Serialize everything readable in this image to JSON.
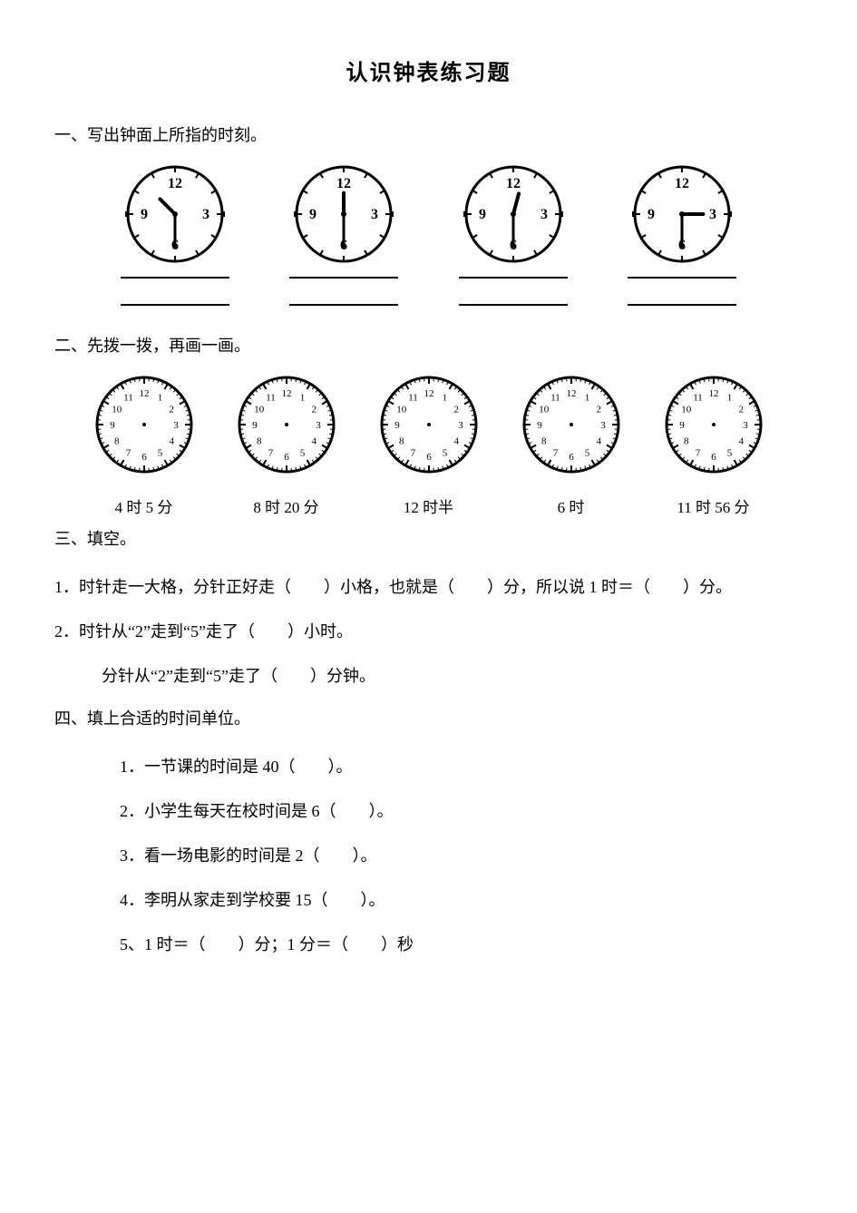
{
  "title": "认识钟表练习题",
  "section1": {
    "heading": "一、写出钟面上所指的时刻。",
    "clocks": [
      {
        "type": "simple",
        "size": 110,
        "stroke": "#000000",
        "stroke_width": 3,
        "face_fill": "#ffffff",
        "numbers": [
          "12",
          "3",
          "6",
          "9"
        ],
        "number_fontsize": 16,
        "hour_angle": 315,
        "minute_angle": 180,
        "hour_len_ratio": 0.45,
        "minute_len_ratio": 0.7,
        "tick_count": 12,
        "tick_len": 6
      },
      {
        "type": "simple",
        "size": 110,
        "stroke": "#000000",
        "stroke_width": 3,
        "face_fill": "#ffffff",
        "numbers": [
          "12",
          "3",
          "6",
          "9"
        ],
        "number_fontsize": 16,
        "hour_angle": 0,
        "minute_angle": 180,
        "hour_len_ratio": 0.45,
        "minute_len_ratio": 0.7,
        "tick_count": 12,
        "tick_len": 6
      },
      {
        "type": "simple",
        "size": 110,
        "stroke": "#000000",
        "stroke_width": 3,
        "face_fill": "#ffffff",
        "numbers": [
          "12",
          "3",
          "6",
          "9"
        ],
        "number_fontsize": 16,
        "hour_angle": 15,
        "minute_angle": 180,
        "hour_len_ratio": 0.45,
        "minute_len_ratio": 0.7,
        "tick_count": 12,
        "tick_len": 6
      },
      {
        "type": "simple",
        "size": 110,
        "stroke": "#000000",
        "stroke_width": 3,
        "face_fill": "#ffffff",
        "numbers": [
          "12",
          "3",
          "6",
          "9"
        ],
        "number_fontsize": 16,
        "hour_angle": 90,
        "minute_angle": 180,
        "hour_len_ratio": 0.45,
        "minute_len_ratio": 0.7,
        "tick_count": 12,
        "tick_len": 6
      }
    ]
  },
  "section2": {
    "heading": "二、先拨一拨，再画一画。",
    "clocks": [
      {
        "label": "4 时 5 分",
        "type": "full",
        "size": 110,
        "stroke": "#000000",
        "stroke_width": 3,
        "face_fill": "#ffffff",
        "number_fontsize": 11,
        "tick_count": 60,
        "major_tick_len": 7,
        "minor_tick_len": 4
      },
      {
        "label": "8 时 20 分",
        "type": "full",
        "size": 110,
        "stroke": "#000000",
        "stroke_width": 3,
        "face_fill": "#ffffff",
        "number_fontsize": 11,
        "tick_count": 60,
        "major_tick_len": 7,
        "minor_tick_len": 4
      },
      {
        "label": "12 时半",
        "type": "full",
        "size": 110,
        "stroke": "#000000",
        "stroke_width": 3,
        "face_fill": "#ffffff",
        "number_fontsize": 11,
        "tick_count": 60,
        "major_tick_len": 7,
        "minor_tick_len": 4
      },
      {
        "label": "6 时",
        "type": "full",
        "size": 110,
        "stroke": "#000000",
        "stroke_width": 3,
        "face_fill": "#ffffff",
        "number_fontsize": 11,
        "tick_count": 60,
        "major_tick_len": 7,
        "minor_tick_len": 4
      },
      {
        "label": "11 时 56 分",
        "type": "full",
        "size": 110,
        "stroke": "#000000",
        "stroke_width": 3,
        "face_fill": "#ffffff",
        "number_fontsize": 11,
        "tick_count": 60,
        "major_tick_len": 7,
        "minor_tick_len": 4
      }
    ]
  },
  "section3": {
    "heading": "三、填空。",
    "q1": "1．时针走一大格，分针正好走（　　）小格，也就是（　　）分，所以说 1 时＝（　　）分。",
    "q2a": "2．时针从“2”走到“5”走了（　　）小时。",
    "q2b": "分针从“2”走到“5”走了（　　）分钟。"
  },
  "section4": {
    "heading": "四、填上合适的时间单位。",
    "q1": "1．一节课的时间是 40（　　）。",
    "q2": "2．小学生每天在校时间是 6（　　）。",
    "q3": "3．看一场电影的时间是 2（　　）。",
    "q4": "4．李明从家走到学校要 15（　　）。",
    "q5": "5、1 时＝（　　）分；1 分＝（　　）秒"
  }
}
